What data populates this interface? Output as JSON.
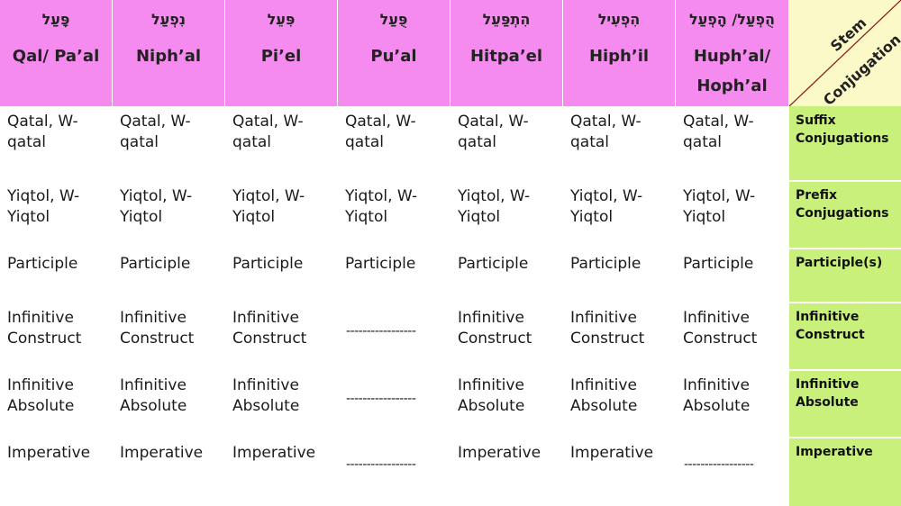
{
  "header": {
    "stems": [
      {
        "hebrew": "פָּעַל",
        "name": "Qal/ Pa’al"
      },
      {
        "hebrew": "נִפְעַל",
        "name": "Niph’al"
      },
      {
        "hebrew": "פִּעֵל",
        "name": "Pi’el"
      },
      {
        "hebrew": "פֻּעַל",
        "name": "Pu’al"
      },
      {
        "hebrew": "הִתְפַּעֵל",
        "name": "Hitpa’el"
      },
      {
        "hebrew": "הִפְעִיל",
        "name": "Hiph’il"
      },
      {
        "hebrew": "הֻפְעַל/ הָפְעַל",
        "name": "Huph’al/ Hoph’al"
      }
    ],
    "corner_top": "Stem",
    "corner_bottom": "Conjugation"
  },
  "rows": [
    {
      "label": "Suffix Conjugations",
      "cells": [
        "Qatal, W-qatal",
        "Qatal, W-qatal",
        "Qatal, W-qatal",
        "Qatal, W-qatal",
        "Qatal, W-qatal",
        "Qatal, W-qatal",
        "Qatal, W-qatal"
      ]
    },
    {
      "label": "Prefix Conjugations",
      "cells": [
        "Yiqtol, W-Yiqtol",
        "Yiqtol, W-Yiqtol",
        "Yiqtol, W-Yiqtol",
        "Yiqtol, W-Yiqtol",
        "Yiqtol, W-Yiqtol",
        "Yiqtol, W-Yiqtol",
        "Yiqtol, W-Yiqtol"
      ]
    },
    {
      "label": "Participle(s)",
      "cells": [
        "Participle",
        "Participle",
        "Participle",
        "Participle",
        "Participle",
        "Participle",
        "Participle"
      ]
    },
    {
      "label": "Infinitive Construct",
      "cells": [
        "Infinitive Construct",
        "Infinitive Construct",
        "Infinitive Construct",
        "-----------------",
        "Infinitive Construct",
        "Infinitive Construct",
        "Infinitive Construct"
      ]
    },
    {
      "label": "Infinitive Absolute",
      "cells": [
        "Infinitive Absolute",
        "Infinitive Absolute",
        "Infinitive Absolute",
        "-----------------",
        "Infinitive Absolute",
        "Infinitive Absolute",
        "Infinitive Absolute"
      ]
    },
    {
      "label": "Imperative",
      "cells": [
        "Imperative",
        "Imperative",
        "Imperative",
        "-----------------",
        "Imperative",
        "Imperative",
        "-----------------"
      ]
    }
  ],
  "colors": {
    "header_bg": "#f58bef",
    "side_bg": "#c9f07a",
    "corner_bg": "#fbf9c8",
    "corner_line": "#8a1a1a"
  }
}
